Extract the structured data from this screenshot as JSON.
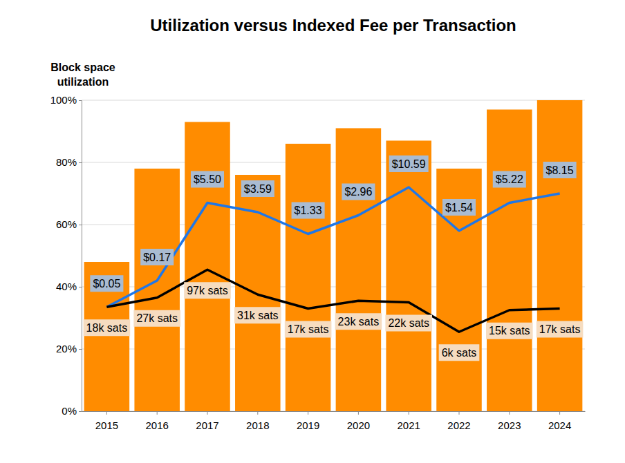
{
  "chart_data": {
    "type": "bar",
    "title": "Utilization versus Indexed Fee per Transaction",
    "ylabel": "Block space\nutilization",
    "categories": [
      "2015",
      "2016",
      "2017",
      "2018",
      "2019",
      "2020",
      "2021",
      "2022",
      "2023",
      "2024"
    ],
    "series": [
      {
        "type": "bar",
        "color": "#ff8c00",
        "values": [
          48,
          78,
          93,
          76,
          86,
          91,
          87,
          78,
          97,
          100
        ]
      },
      {
        "type": "line",
        "color": "#1f77e8",
        "values": [
          33.5,
          42,
          67,
          64,
          57,
          63,
          72,
          58,
          67,
          70
        ],
        "point_labels": [
          "$0.05",
          "$0.17",
          "$5.50",
          "$3.59",
          "$1.33",
          "$2.96",
          "$10.59",
          "$1.54",
          "$5.22",
          "$8.15"
        ]
      },
      {
        "type": "line",
        "color": "#000000",
        "values": [
          33.5,
          36.5,
          45.5,
          37.5,
          33,
          35.5,
          35,
          25.5,
          32.5,
          33
        ],
        "point_labels": [
          "18k sats",
          "27k sats",
          "97k sats",
          "31k sats",
          "17k sats",
          "23k sats",
          "22k sats",
          "6k sats",
          "15k sats",
          "17k sats"
        ]
      }
    ],
    "ylim": [
      0,
      100
    ],
    "yticks": [
      {
        "value": 0,
        "label": "0%"
      },
      {
        "value": 20,
        "label": "20%"
      },
      {
        "value": 40,
        "label": "40%"
      },
      {
        "value": 60,
        "label": "60%"
      },
      {
        "value": 80,
        "label": "80%"
      },
      {
        "value": 100,
        "label": "100%"
      }
    ],
    "grid": true
  }
}
